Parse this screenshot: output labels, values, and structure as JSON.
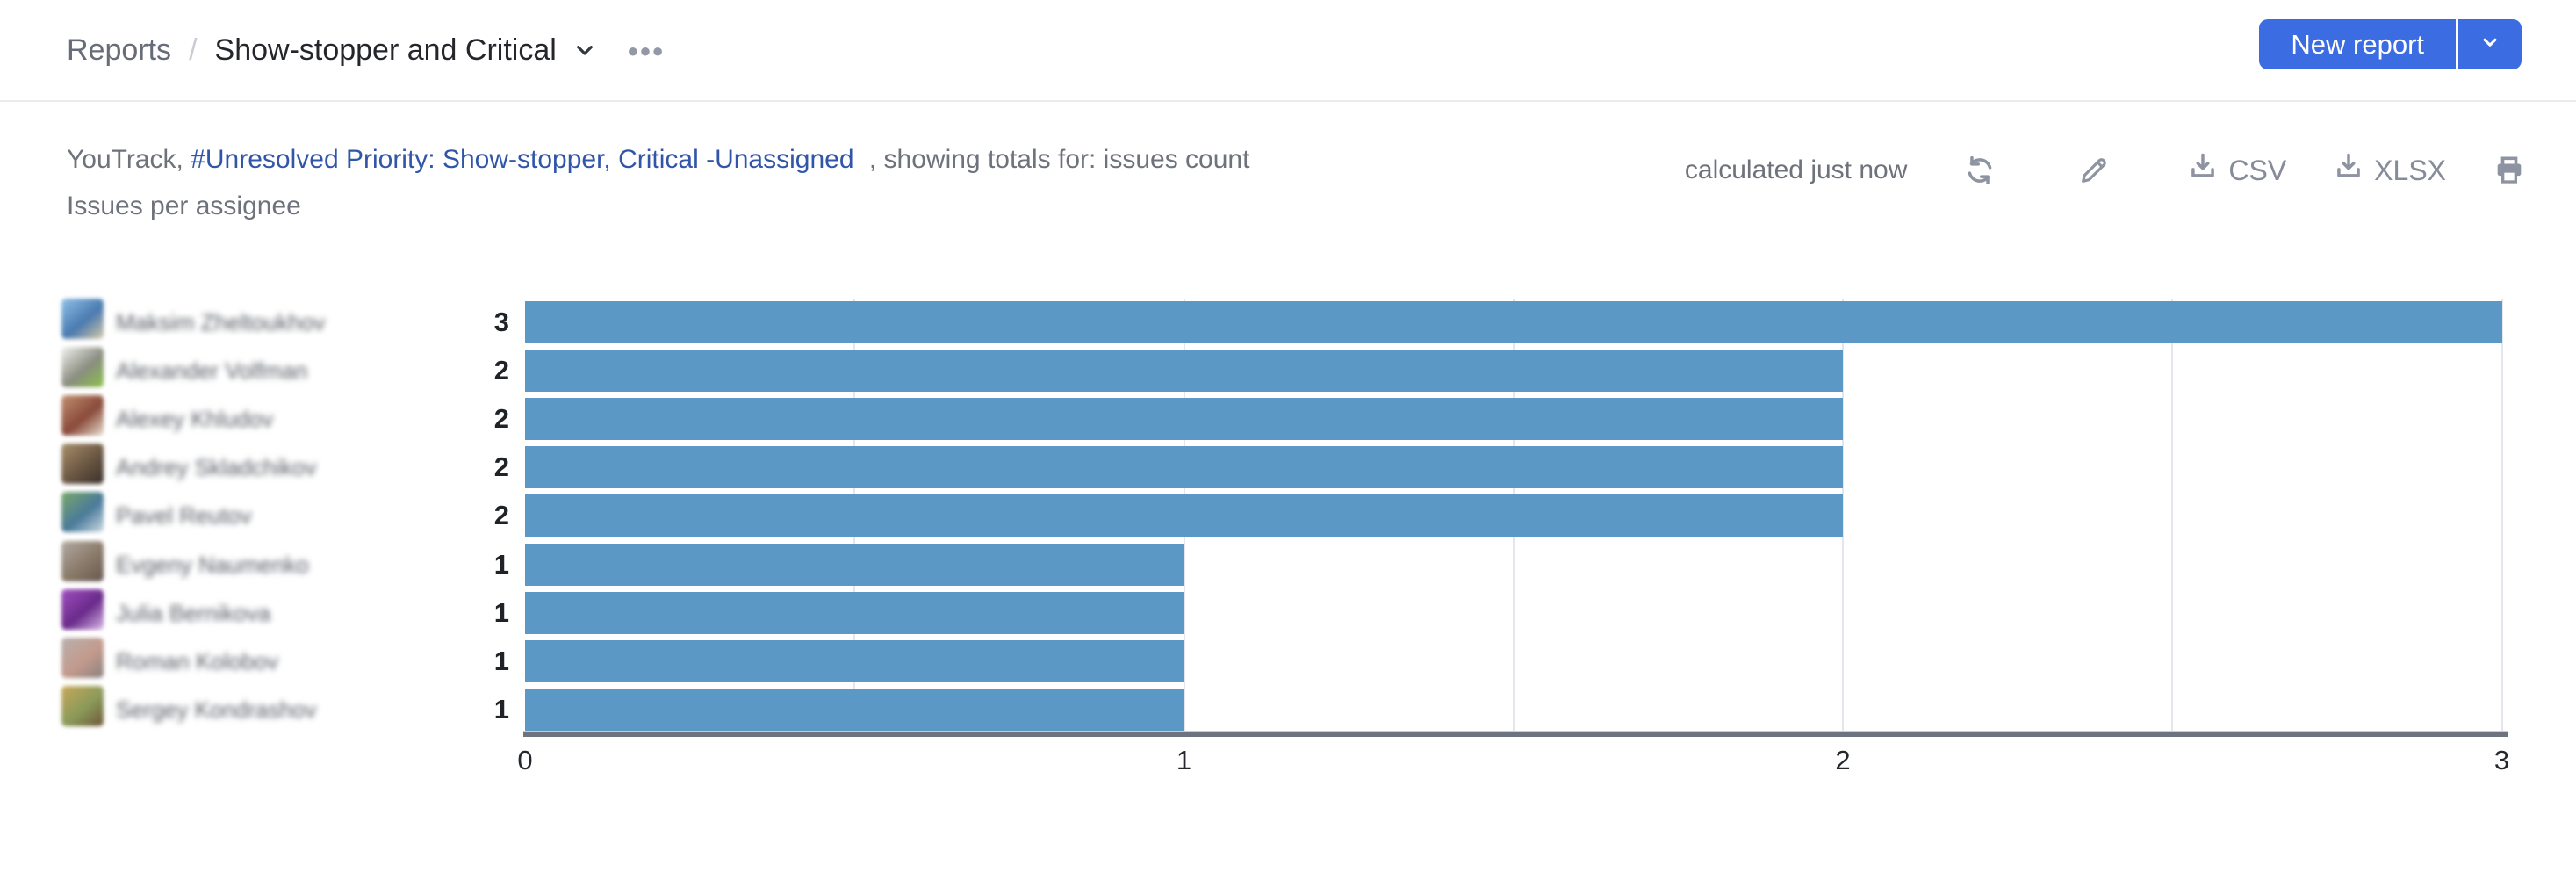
{
  "header": {
    "breadcrumb_root": "Reports",
    "breadcrumb_separator": "/",
    "title": "Show-stopper and Critical",
    "new_report_label": "New report"
  },
  "meta": {
    "app_prefix": "YouTrack,",
    "query_link": "#Unresolved Priority: Show-stopper, Critical -Unassigned",
    "totals_suffix": ", showing totals for: issues count",
    "chart_caption": "Issues per assignee"
  },
  "toolbar": {
    "calculated": "calculated just now",
    "csv_label": "CSV",
    "xlsx_label": "XLSX"
  },
  "icons": {
    "title_dropdown": "chevron-down-icon",
    "more_options": "more-options-icon",
    "button_dropdown": "chevron-down-icon",
    "refresh": "refresh-icon",
    "edit": "pencil-icon",
    "download": "download-icon",
    "print": "printer-icon"
  },
  "colors": {
    "accent_button": "#3b6ce1",
    "link": "#3156a8",
    "bar": "#5c98c5",
    "icon_gray": "#8d93a1",
    "divider": "#e9ebee"
  },
  "chart_data": {
    "type": "bar",
    "orientation": "horizontal",
    "title": "Issues per assignee",
    "xlabel": "",
    "ylabel": "",
    "xlim": [
      0,
      3
    ],
    "xticks": [
      0,
      1,
      2,
      3
    ],
    "gridline_step": 0.5,
    "grid": true,
    "bar_color": "#5c98c5",
    "value_labels_shown": true,
    "categories": [
      "Maksim Zheltoukhov",
      "Alexander Volfman",
      "Alexey Khludov",
      "Andrey Skladchikov",
      "Pavel Reutov",
      "Evgeny Naumenko",
      "Julia Bernikova",
      "Roman Kolobov",
      "Sergey Kondrashov"
    ],
    "values": [
      3,
      2,
      2,
      2,
      2,
      1,
      1,
      1,
      1
    ],
    "rows": [
      {
        "name": "Maksim Zheltoukhov",
        "value": 3,
        "avatar_colors": [
          "#8fc1e8",
          "#4a7ab0",
          "#d8c9a8"
        ]
      },
      {
        "name": "Alexander Volfman",
        "value": 2,
        "avatar_colors": [
          "#f2f3f0",
          "#8a8d80",
          "#8bc24a"
        ]
      },
      {
        "name": "Alexey Khludov",
        "value": 2,
        "avatar_colors": [
          "#c09070",
          "#8a4a3a",
          "#e8e0d0"
        ]
      },
      {
        "name": "Andrey Skladchikov",
        "value": 2,
        "avatar_colors": [
          "#a8906c",
          "#6a5642",
          "#38302a"
        ]
      },
      {
        "name": "Pavel Reutov",
        "value": 2,
        "avatar_colors": [
          "#7aa86a",
          "#4a7a9a",
          "#cfdde4"
        ]
      },
      {
        "name": "Evgeny Naumenko",
        "value": 1,
        "avatar_colors": [
          "#b3aaa2",
          "#8a7a6a",
          "#665850"
        ]
      },
      {
        "name": "Julia Bernikova",
        "value": 1,
        "avatar_colors": [
          "#a050c0",
          "#6a2a8a",
          "#d8b8e8"
        ]
      },
      {
        "name": "Roman Kolobov",
        "value": 1,
        "avatar_colors": [
          "#b8b0ae",
          "#c39a8c",
          "#8a8280"
        ]
      },
      {
        "name": "Sergey Kondrashov",
        "value": 1,
        "avatar_colors": [
          "#c8a85a",
          "#8a9a5a",
          "#6e5638"
        ]
      }
    ]
  }
}
